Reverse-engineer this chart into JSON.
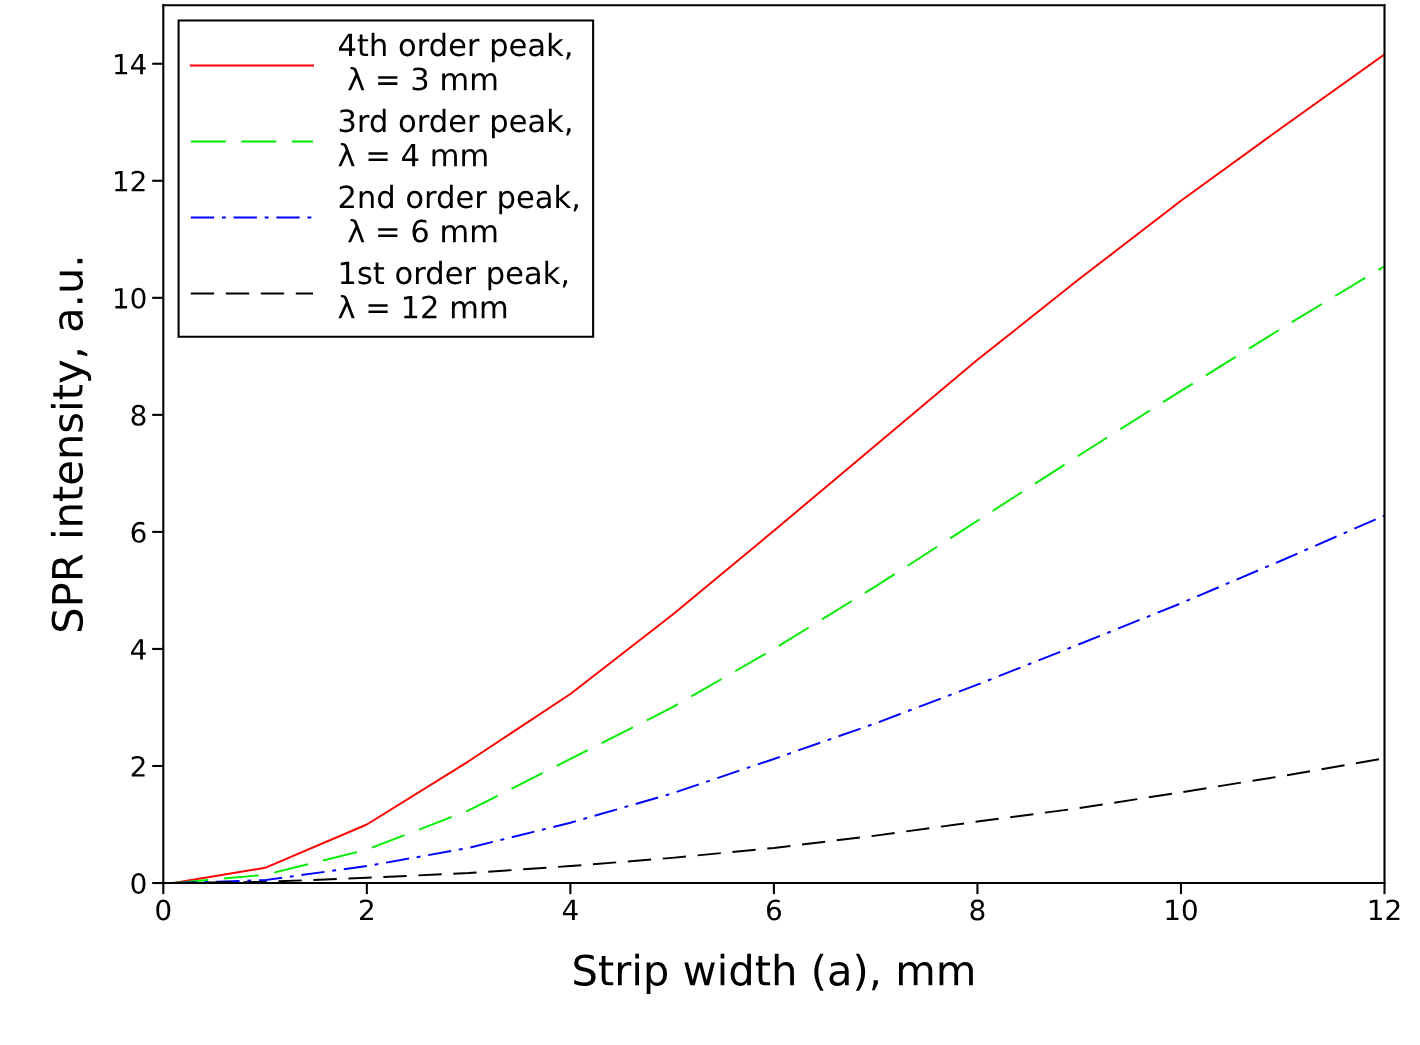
{
  "chart_data": {
    "type": "line",
    "xlabel": "Strip width (a), mm",
    "ylabel": "SPR intensity, a.u.",
    "x": [
      0.1,
      1,
      2,
      3,
      4,
      5,
      6,
      7,
      8,
      9,
      10,
      11,
      12
    ],
    "series": [
      {
        "name": "4th order peak,\n λ = 3 mm",
        "color": "#ff0000",
        "line_style": "solid",
        "values": [
          0,
          0.26,
          1.0,
          2.08,
          3.23,
          4.58,
          6.02,
          7.48,
          8.94,
          10.32,
          11.66,
          12.92,
          14.16
        ]
      },
      {
        "name": "3rd order peak,\nλ = 4 mm",
        "color": "#00ee00",
        "line_style": "dashed",
        "values": [
          0,
          0.14,
          0.57,
          1.24,
          2.12,
          3.0,
          4.0,
          5.07,
          6.19,
          7.31,
          8.41,
          9.49,
          10.54
        ]
      },
      {
        "name": "2nd order peak,\n λ = 6 mm",
        "color": "#0000ff",
        "line_style": "dashdot",
        "values": [
          0,
          0.05,
          0.29,
          0.6,
          1.03,
          1.53,
          2.12,
          2.73,
          3.39,
          4.08,
          4.78,
          5.52,
          6.28
        ]
      },
      {
        "name": "1st order peak,\nλ = 12 mm",
        "color": "#000000",
        "line_style": "dashed",
        "values": [
          0,
          0.02,
          0.09,
          0.17,
          0.29,
          0.43,
          0.6,
          0.81,
          1.05,
          1.28,
          1.55,
          1.83,
          2.13
        ]
      }
    ],
    "xlim": [
      0,
      12
    ],
    "xticks": [
      0,
      2,
      4,
      6,
      8,
      10,
      12
    ],
    "ylim": [
      0,
      15
    ],
    "yticks": [
      0,
      2,
      4,
      6,
      8,
      10,
      12,
      14
    ],
    "grid": false,
    "legend": "top left",
    "marker": "none"
  }
}
